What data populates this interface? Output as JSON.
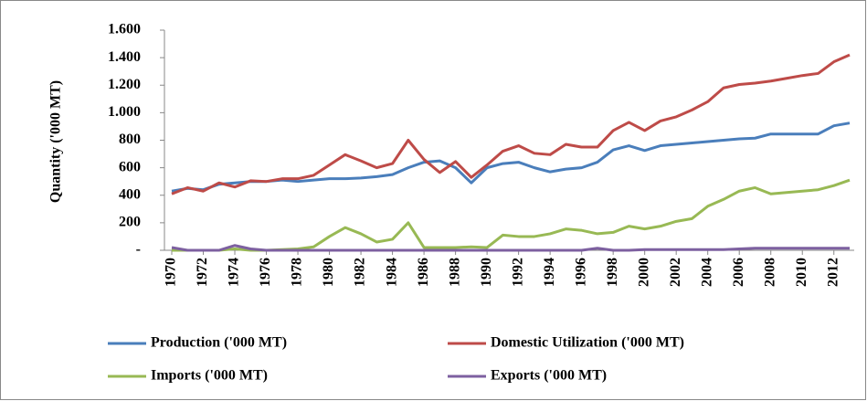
{
  "chart_data": {
    "type": "line",
    "y_label": "Quantity ('000 MT)",
    "x": [
      1970,
      1971,
      1972,
      1973,
      1974,
      1975,
      1976,
      1977,
      1978,
      1979,
      1980,
      1981,
      1982,
      1983,
      1984,
      1985,
      1986,
      1987,
      1988,
      1989,
      1990,
      1991,
      1992,
      1993,
      1994,
      1995,
      1996,
      1997,
      1998,
      1999,
      2000,
      2001,
      2002,
      2003,
      2004,
      2005,
      2006,
      2007,
      2008,
      2009,
      2010,
      2011,
      2012,
      2013
    ],
    "xlim": [
      1970,
      2013
    ],
    "xticks": [
      1970,
      1972,
      1974,
      1976,
      1978,
      1980,
      1982,
      1984,
      1986,
      1988,
      1990,
      1992,
      1994,
      1996,
      1998,
      2000,
      2002,
      2004,
      2006,
      2008,
      2010,
      2012
    ],
    "ylim": [
      0,
      1600
    ],
    "yticks": [
      {
        "value": 0,
        "label": "-"
      },
      200,
      400,
      600,
      800,
      {
        "value": 1000,
        "label": "1.000"
      },
      {
        "value": 1200,
        "label": "1.200"
      },
      {
        "value": 1400,
        "label": "1.400"
      },
      {
        "value": 1600,
        "label": "1.600"
      }
    ],
    "grid": false,
    "series": [
      {
        "name": "Production ('000 MT)",
        "color": "#4a7ebb",
        "values": [
          430,
          450,
          440,
          480,
          490,
          500,
          500,
          510,
          500,
          510,
          520,
          520,
          525,
          535,
          550,
          600,
          640,
          650,
          600,
          490,
          600,
          630,
          640,
          600,
          570,
          590,
          600,
          640,
          730,
          760,
          725,
          760,
          770,
          780,
          790,
          800,
          810,
          815,
          845,
          845,
          845,
          845,
          905,
          925
        ]
      },
      {
        "name": "Domestic Utilization ('000 MT)",
        "color": "#be4b48",
        "values": [
          410,
          455,
          430,
          490,
          460,
          505,
          500,
          520,
          520,
          545,
          620,
          695,
          650,
          600,
          630,
          800,
          660,
          565,
          645,
          530,
          620,
          720,
          760,
          705,
          695,
          770,
          750,
          750,
          870,
          930,
          870,
          940,
          970,
          1020,
          1080,
          1180,
          1205,
          1215,
          1230,
          1250,
          1270,
          1285,
          1370,
          1420
        ]
      },
      {
        "name": "Imports ('000 MT)",
        "color": "#98b954",
        "values": [
          0,
          0,
          0,
          0,
          10,
          0,
          0,
          5,
          10,
          25,
          100,
          165,
          120,
          60,
          80,
          200,
          20,
          20,
          20,
          25,
          20,
          110,
          100,
          100,
          120,
          155,
          145,
          120,
          130,
          175,
          155,
          175,
          210,
          230,
          320,
          370,
          430,
          455,
          410,
          420,
          430,
          440,
          470,
          510
        ]
      },
      {
        "name": "Exports ('000 MT)",
        "color": "#7d60a0",
        "values": [
          20,
          0,
          0,
          0,
          35,
          10,
          0,
          0,
          0,
          0,
          0,
          0,
          0,
          0,
          0,
          0,
          0,
          0,
          0,
          0,
          0,
          0,
          0,
          0,
          0,
          0,
          0,
          15,
          0,
          0,
          5,
          5,
          5,
          5,
          5,
          5,
          10,
          15,
          15,
          15,
          15,
          15,
          15,
          15
        ]
      }
    ]
  }
}
